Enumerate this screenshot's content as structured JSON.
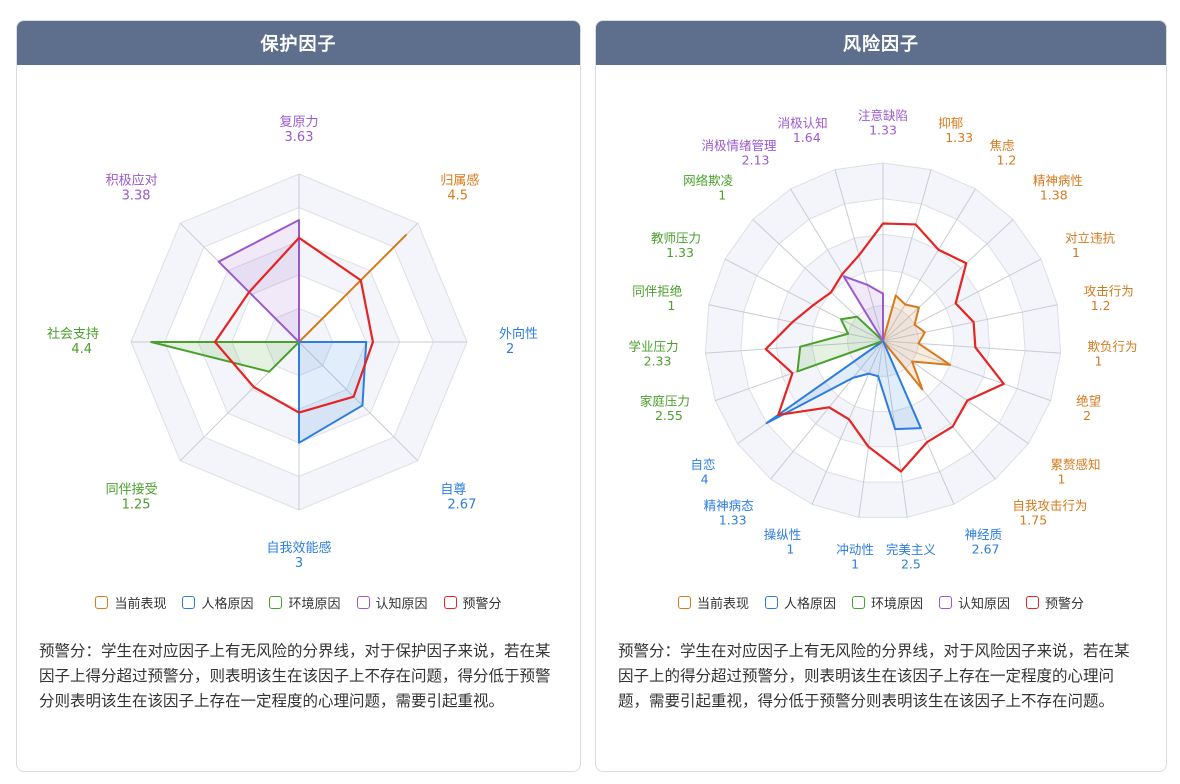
{
  "protect": {
    "title": "保护因子",
    "legend": [
      {
        "label": "当前表现",
        "color": "#d67a1d"
      },
      {
        "label": "人格原因",
        "color": "#2d7de0"
      },
      {
        "label": "环境原因",
        "color": "#4aa02c"
      },
      {
        "label": "认知原因",
        "color": "#9b59d0"
      },
      {
        "label": "预警分",
        "color": "#e52424"
      }
    ],
    "note": "预警分：学生在对应因子上有无风险的分界线，对于保护因子来说，若在某因子上得分超过预警分，则表明该生在该因子上不存在问题，得分低于预警分则表明该生在该因子上存在一定程度的心理问题，需要引起重视。"
  },
  "risk": {
    "title": "风险因子",
    "legend": [
      {
        "label": "当前表现",
        "color": "#d67a1d"
      },
      {
        "label": "人格原因",
        "color": "#2d7de0"
      },
      {
        "label": "环境原因",
        "color": "#4aa02c"
      },
      {
        "label": "认知原因",
        "color": "#9b59d0"
      },
      {
        "label": "预警分",
        "color": "#e52424"
      }
    ],
    "note": "预警分：学生在对应因子上有无风险的分界线，对于风险因子来说，若在某因子上的得分超过预警分，则表明该生在该因子上存在一定程度的心理问题，需要引起重视，得分低于预警分则表明该生在该因子上不存在问题。"
  },
  "chart_data": [
    {
      "type": "radar",
      "title": "保护因子",
      "max": 5,
      "axes": [
        {
          "name": "复原力",
          "value": 3.63,
          "group": "认知原因"
        },
        {
          "name": "归属感",
          "value": 4.5,
          "group": "当前表现"
        },
        {
          "name": "外向性",
          "value": 2,
          "group": "人格原因"
        },
        {
          "name": "自尊",
          "value": 2.67,
          "group": "人格原因"
        },
        {
          "name": "自我效能感",
          "value": 3,
          "group": "人格原因"
        },
        {
          "name": "同伴接受",
          "value": 1.25,
          "group": "环境原因"
        },
        {
          "name": "社会支持",
          "value": 4.4,
          "group": "环境原因"
        },
        {
          "name": "积极应对",
          "value": 3.38,
          "group": "认知原因"
        }
      ],
      "series": [
        {
          "name": "当前表现",
          "color": "#d67a1d"
        },
        {
          "name": "人格原因",
          "color": "#2d7de0"
        },
        {
          "name": "环境原因",
          "color": "#4aa02c"
        },
        {
          "name": "认知原因",
          "color": "#9b59d0"
        },
        {
          "name": "预警分",
          "color": "#e52424",
          "values": [
            3.1,
            2.6,
            2.2,
            2.3,
            2.1,
            1.9,
            2.5,
            2.1
          ]
        }
      ]
    },
    {
      "type": "radar",
      "title": "风险因子",
      "max": 5,
      "axes": [
        {
          "name": "注意缺陷",
          "value": 1.33,
          "group": "认知原因"
        },
        {
          "name": "抑郁",
          "value": 1.33,
          "group": "当前表现"
        },
        {
          "name": "焦虑",
          "value": 1.2,
          "group": "当前表现"
        },
        {
          "name": "精神病性",
          "value": 1.38,
          "group": "当前表现"
        },
        {
          "name": "对立违抗",
          "value": 1,
          "group": "当前表现"
        },
        {
          "name": "攻击行为",
          "value": 1.2,
          "group": "当前表现"
        },
        {
          "name": "欺负行为",
          "value": 1,
          "group": "当前表现"
        },
        {
          "name": "绝望",
          "value": 2,
          "group": "当前表现"
        },
        {
          "name": "累赘感知",
          "value": 1,
          "group": "当前表现"
        },
        {
          "name": "自我攻击行为",
          "value": 1.75,
          "group": "当前表现"
        },
        {
          "name": "神经质",
          "value": 2.67,
          "group": "人格原因"
        },
        {
          "name": "完美主义",
          "value": 2.5,
          "group": "人格原因"
        },
        {
          "name": "冲动性",
          "value": 1,
          "group": "人格原因"
        },
        {
          "name": "操纵性",
          "value": 1,
          "group": "人格原因"
        },
        {
          "name": "精神病态",
          "value": 1.33,
          "group": "人格原因"
        },
        {
          "name": "自恋",
          "value": 4,
          "group": "人格原因"
        },
        {
          "name": "家庭压力",
          "value": 2.55,
          "group": "环境原因"
        },
        {
          "name": "学业压力",
          "value": 2.33,
          "group": "环境原因"
        },
        {
          "name": "同伴拒绝",
          "value": 1,
          "group": "环境原因"
        },
        {
          "name": "教师压力",
          "value": 1.33,
          "group": "环境原因"
        },
        {
          "name": "网络欺凌",
          "value": 1,
          "group": "环境原因"
        },
        {
          "name": "消极情绪管理",
          "value": 2.13,
          "group": "认知原因"
        },
        {
          "name": "消极认知",
          "value": 1.64,
          "group": "认知原因"
        }
      ],
      "series": [
        {
          "name": "当前表现",
          "color": "#d67a1d"
        },
        {
          "name": "人格原因",
          "color": "#2d7de0"
        },
        {
          "name": "环境原因",
          "color": "#4aa02c"
        },
        {
          "name": "认知原因",
          "color": "#9b59d0"
        },
        {
          "name": "预警分",
          "color": "#e52424",
          "values": [
            3.3,
            3.4,
            3.0,
            3.2,
            2.3,
            2.6,
            2.6,
            3.6,
            2.9,
            3.1,
            3.1,
            3.7,
            3.0,
            2.4,
            2.4,
            3.6,
            2.7,
            3.3,
            2.6,
            2.2,
            2.0,
            2.2,
            2.5
          ]
        }
      ]
    }
  ]
}
